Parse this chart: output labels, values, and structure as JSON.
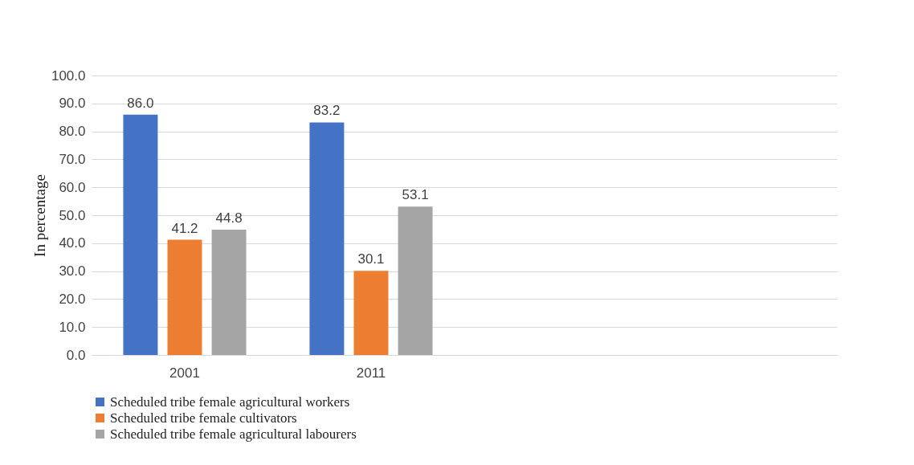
{
  "chart_data": {
    "type": "bar",
    "ylabel": "In percentage",
    "categories": [
      "2001",
      "2011",
      null,
      null
    ],
    "series": [
      {
        "name": "Scheduled tribe female agricultural workers",
        "color": "#4472c4",
        "values": [
          86.0,
          83.2,
          null,
          null
        ],
        "value_labels": [
          "86.0",
          "83.2",
          null,
          null
        ]
      },
      {
        "name": "Scheduled tribe female cultivators",
        "color": "#ed7d31",
        "values": [
          41.2,
          30.1,
          null,
          null
        ],
        "value_labels": [
          "41.2",
          "30.1",
          null,
          null
        ]
      },
      {
        "name": "Scheduled tribe female agricultural labourers",
        "color": "#a5a5a5",
        "values": [
          44.8,
          53.1,
          null,
          null
        ],
        "value_labels": [
          "44.8",
          "53.1",
          null,
          null
        ]
      }
    ],
    "ylim": [
      0,
      100
    ],
    "yticks": [
      {
        "value": 0,
        "label": "0.0"
      },
      {
        "value": 10,
        "label": "10.0"
      },
      {
        "value": 20,
        "label": "20.0"
      },
      {
        "value": 30,
        "label": "30.0"
      },
      {
        "value": 40,
        "label": "40.0"
      },
      {
        "value": 50,
        "label": "50.0"
      },
      {
        "value": 60,
        "label": "60.0"
      },
      {
        "value": 70,
        "label": "70.0"
      },
      {
        "value": 80,
        "label": "80.0"
      },
      {
        "value": 90,
        "label": "90.0"
      },
      {
        "value": 100,
        "label": "100.0"
      }
    ],
    "grid": "y",
    "legend": "bottom"
  }
}
